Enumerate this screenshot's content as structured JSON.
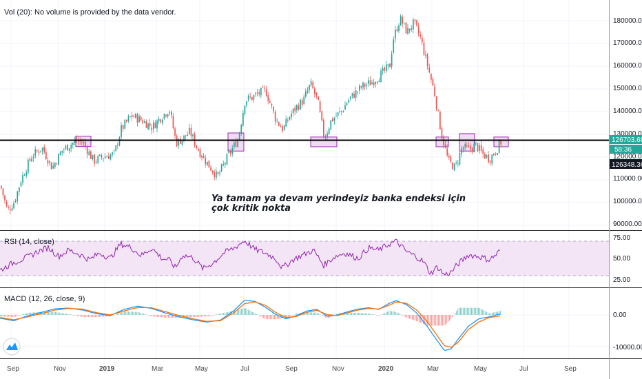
{
  "main_pane": {
    "vol_label": "Vol (20): No volume is provided by the data vendor.",
    "y_ticks": [
      "180000.00",
      "170000.00",
      "160000.00",
      "150000.00",
      "140000.00",
      "130000.00",
      "120000.00",
      "110000.00",
      "100000.00",
      "90000.00"
    ],
    "price_tags": {
      "current": "126703.68",
      "countdown": "58:36",
      "crosshair": "126348.36"
    },
    "annotation": [
      "Ya tamam ya devam yerindeyiz banka endeksi için",
      "çok kritik nokta"
    ]
  },
  "rsi_pane": {
    "label": "RSI (14, close)",
    "y_ticks": [
      "75.00",
      "50.00",
      "25.00"
    ]
  },
  "macd_pane": {
    "label": "MACD (12, 26, close, 9)",
    "y_ticks": [
      "0.00",
      "-10000.00"
    ]
  },
  "time_axis": [
    "Sep",
    "Nov",
    "2019",
    "Mar",
    "May",
    "Jul",
    "Sep",
    "Nov",
    "2020",
    "Mar",
    "May",
    "Jul",
    "Sep"
  ],
  "colors": {
    "up": "#26a69a",
    "down": "#ef5350",
    "rsi_line": "#8e24aa",
    "rsi_band": "#f3e5f5",
    "macd_line": "#2196f3",
    "signal_line": "#ff6d00",
    "zone_fill": "#e1bee7",
    "zone_stroke": "#9c27b0",
    "price_tag": "#26a69a",
    "crosshair_tag": "#131722"
  },
  "chart_data": {
    "type": "candlestick",
    "support_line": 126703.68,
    "price_waypoints": [
      [
        0,
        107000
      ],
      [
        10,
        96000
      ],
      [
        20,
        100000
      ],
      [
        30,
        110000
      ],
      [
        45,
        120000
      ],
      [
        60,
        124000
      ],
      [
        75,
        115000
      ],
      [
        90,
        123000
      ],
      [
        110,
        127000
      ],
      [
        120,
        126000
      ],
      [
        135,
        118000
      ],
      [
        150,
        120000
      ],
      [
        165,
        121000
      ],
      [
        175,
        132000
      ],
      [
        190,
        138000
      ],
      [
        205,
        136000
      ],
      [
        220,
        133000
      ],
      [
        235,
        138000
      ],
      [
        245,
        141000
      ],
      [
        255,
        126000
      ],
      [
        265,
        128000
      ],
      [
        275,
        131000
      ],
      [
        285,
        124000
      ],
      [
        300,
        117000
      ],
      [
        315,
        111000
      ],
      [
        330,
        120000
      ],
      [
        345,
        128000
      ],
      [
        355,
        145000
      ],
      [
        365,
        146000
      ],
      [
        375,
        148000
      ],
      [
        385,
        149000
      ],
      [
        400,
        136000
      ],
      [
        410,
        132000
      ],
      [
        420,
        138000
      ],
      [
        430,
        142000
      ],
      [
        440,
        145000
      ],
      [
        450,
        152000
      ],
      [
        460,
        145000
      ],
      [
        470,
        128000
      ],
      [
        480,
        136000
      ],
      [
        495,
        140000
      ],
      [
        505,
        145000
      ],
      [
        515,
        148000
      ],
      [
        525,
        151000
      ],
      [
        540,
        153000
      ],
      [
        555,
        157000
      ],
      [
        565,
        160000
      ],
      [
        570,
        172000
      ],
      [
        580,
        181000
      ],
      [
        590,
        175000
      ],
      [
        600,
        179000
      ],
      [
        610,
        172000
      ],
      [
        620,
        160000
      ],
      [
        630,
        148000
      ],
      [
        640,
        130000
      ],
      [
        650,
        118000
      ],
      [
        660,
        115000
      ],
      [
        670,
        124000
      ],
      [
        680,
        123000
      ],
      [
        690,
        125000
      ],
      [
        700,
        121000
      ],
      [
        710,
        119000
      ],
      [
        720,
        123000
      ],
      [
        727,
        126700
      ]
    ],
    "rsi_waypoints": [
      [
        0,
        33
      ],
      [
        20,
        44
      ],
      [
        40,
        52
      ],
      [
        55,
        60
      ],
      [
        70,
        66
      ],
      [
        85,
        53
      ],
      [
        100,
        62
      ],
      [
        115,
        56
      ],
      [
        130,
        48
      ],
      [
        145,
        58
      ],
      [
        160,
        50
      ],
      [
        175,
        71
      ],
      [
        190,
        66
      ],
      [
        205,
        54
      ],
      [
        220,
        65
      ],
      [
        235,
        50
      ],
      [
        245,
        48
      ],
      [
        255,
        36
      ],
      [
        265,
        55
      ],
      [
        280,
        51
      ],
      [
        295,
        35
      ],
      [
        310,
        44
      ],
      [
        325,
        58
      ],
      [
        340,
        65
      ],
      [
        355,
        76
      ],
      [
        370,
        63
      ],
      [
        385,
        58
      ],
      [
        400,
        50
      ],
      [
        410,
        36
      ],
      [
        425,
        48
      ],
      [
        440,
        55
      ],
      [
        455,
        62
      ],
      [
        470,
        40
      ],
      [
        485,
        52
      ],
      [
        500,
        58
      ],
      [
        520,
        50
      ],
      [
        535,
        65
      ],
      [
        550,
        62
      ],
      [
        565,
        71
      ],
      [
        575,
        75
      ],
      [
        590,
        60
      ],
      [
        605,
        52
      ],
      [
        615,
        45
      ],
      [
        625,
        28
      ],
      [
        635,
        38
      ],
      [
        645,
        26
      ],
      [
        655,
        30
      ],
      [
        665,
        42
      ],
      [
        680,
        55
      ],
      [
        695,
        53
      ],
      [
        710,
        48
      ],
      [
        720,
        55
      ],
      [
        727,
        63
      ]
    ],
    "macd_waypoints": [
      [
        0,
        -1000,
        -800
      ],
      [
        20,
        -1800,
        -1500
      ],
      [
        40,
        -300,
        -600
      ],
      [
        60,
        800,
        400
      ],
      [
        80,
        1900,
        1500
      ],
      [
        100,
        2100,
        2000
      ],
      [
        120,
        1500,
        1800
      ],
      [
        140,
        400,
        700
      ],
      [
        160,
        -200,
        0
      ],
      [
        180,
        1700,
        1200
      ],
      [
        200,
        2700,
        2300
      ],
      [
        220,
        2000,
        2200
      ],
      [
        240,
        600,
        1000
      ],
      [
        260,
        -600,
        -200
      ],
      [
        280,
        -1500,
        -1200
      ],
      [
        300,
        -2200,
        -2000
      ],
      [
        320,
        -1600,
        -1800
      ],
      [
        340,
        1400,
        800
      ],
      [
        355,
        4500,
        3500
      ],
      [
        370,
        4200,
        4000
      ],
      [
        385,
        2400,
        3000
      ],
      [
        400,
        200,
        800
      ],
      [
        415,
        -1200,
        -800
      ],
      [
        430,
        -300,
        -500
      ],
      [
        445,
        1200,
        800
      ],
      [
        460,
        1700,
        1400
      ],
      [
        475,
        -400,
        100
      ],
      [
        490,
        0,
        -200
      ],
      [
        505,
        1000,
        700
      ],
      [
        520,
        1800,
        1500
      ],
      [
        535,
        2200,
        2000
      ],
      [
        550,
        1700,
        1800
      ],
      [
        565,
        3600,
        3000
      ],
      [
        575,
        4400,
        4000
      ],
      [
        590,
        3200,
        3600
      ],
      [
        605,
        600,
        1500
      ],
      [
        620,
        -3500,
        -2000
      ],
      [
        635,
        -8000,
        -6500
      ],
      [
        645,
        -11000,
        -9500
      ],
      [
        655,
        -10500,
        -10000
      ],
      [
        665,
        -7500,
        -8500
      ],
      [
        680,
        -3500,
        -4500
      ],
      [
        695,
        -1200,
        -2200
      ],
      [
        710,
        -600,
        -800
      ],
      [
        727,
        300,
        -300
      ]
    ],
    "zones": [
      {
        "x0": 110,
        "x1": 132,
        "y_top": 129000,
        "y_bot": 124400
      },
      {
        "x0": 331,
        "x1": 354,
        "y_top": 130400,
        "y_bot": 122400
      },
      {
        "x0": 451,
        "x1": 489,
        "y_top": 128600,
        "y_bot": 124300
      },
      {
        "x0": 633,
        "x1": 651,
        "y_top": 128600,
        "y_bot": 124300
      },
      {
        "x0": 667,
        "x1": 689,
        "y_top": 130100,
        "y_bot": 122400
      },
      {
        "x0": 717,
        "x1": 738,
        "y_top": 128600,
        "y_bot": 124300
      }
    ]
  }
}
